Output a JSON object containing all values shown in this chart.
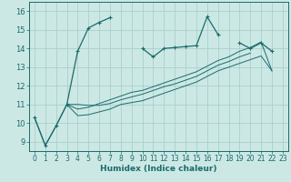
{
  "title": "",
  "xlabel": "Humidex (Indice chaleur)",
  "xlim": [
    -0.5,
    23.5
  ],
  "ylim": [
    8.5,
    16.5
  ],
  "yticks": [
    9,
    10,
    11,
    12,
    13,
    14,
    15,
    16
  ],
  "xticks": [
    0,
    1,
    2,
    3,
    4,
    5,
    6,
    7,
    8,
    9,
    10,
    11,
    12,
    13,
    14,
    15,
    16,
    17,
    18,
    19,
    20,
    21,
    22,
    23
  ],
  "bg_color": "#cce8e5",
  "grid_color": "#aacfcc",
  "line_color": "#1a6b6b",
  "series": [
    [
      10.3,
      8.8,
      9.85,
      11.0,
      13.85,
      15.1,
      15.4,
      15.65,
      null,
      null,
      14.0,
      13.55,
      14.0,
      14.05,
      14.1,
      14.15,
      15.7,
      14.75,
      null,
      14.3,
      14.0,
      14.3,
      13.85,
      null
    ],
    [
      10.3,
      8.8,
      9.85,
      11.0,
      10.4,
      10.45,
      10.6,
      10.75,
      11.0,
      11.1,
      11.2,
      11.4,
      11.6,
      11.8,
      12.0,
      12.2,
      12.5,
      12.8,
      13.0,
      13.2,
      13.4,
      13.6,
      12.8,
      null
    ],
    [
      10.3,
      null,
      null,
      11.0,
      11.0,
      10.95,
      10.95,
      11.05,
      11.25,
      11.4,
      11.55,
      11.75,
      11.95,
      12.1,
      12.3,
      12.5,
      12.8,
      13.1,
      13.3,
      13.55,
      13.75,
      null,
      12.8,
      null
    ],
    [
      10.3,
      null,
      null,
      11.0,
      10.75,
      10.85,
      11.05,
      11.25,
      11.45,
      11.65,
      11.75,
      11.95,
      12.15,
      12.35,
      12.55,
      12.75,
      13.05,
      13.35,
      13.55,
      13.85,
      14.05,
      14.35,
      12.8,
      null
    ]
  ]
}
